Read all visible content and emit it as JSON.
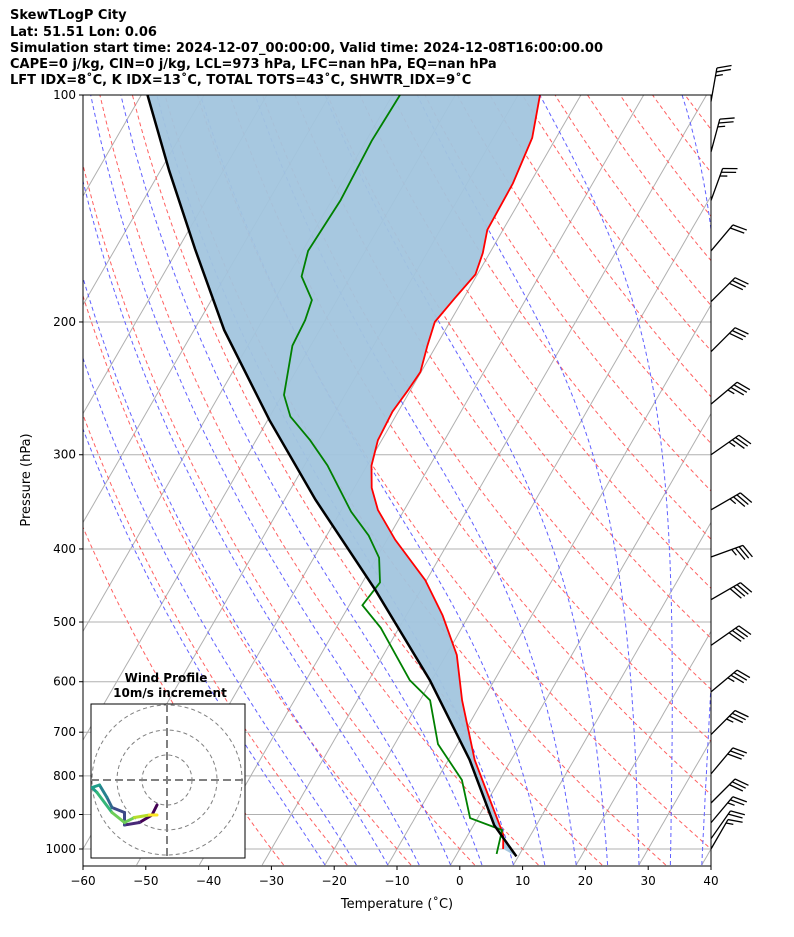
{
  "header": {
    "title": "SkewTLogP City",
    "location": "Lat: 51.51   Lon: 0.06",
    "times": "Simulation start time: 2024-12-07_00:00:00, Valid time: 2024-12-08T16:00:00.00",
    "indices1": "CAPE=0 j/kg, CIN=0 j/kg, LCL=973 hPa, LFC=nan hPa, EQ=nan hPa",
    "indices2": "LFT IDX=8˚C, K IDX=13˚C, TOTAL TOTS=43˚C, SHWTR_IDX=9˚C"
  },
  "chart_data": {
    "type": "line",
    "title": "SkewTLogP City",
    "xlabel": "Temperature (˚C)",
    "ylabel": "Pressure (hPa)",
    "xlim": [
      -60,
      40
    ],
    "ylim": [
      1050,
      100
    ],
    "xticks": [
      "−60",
      "−50",
      "−40",
      "−30",
      "−20",
      "−10",
      "0",
      "10",
      "20",
      "30",
      "40"
    ],
    "xtick_values": [
      -60,
      -50,
      -40,
      -30,
      -20,
      -10,
      0,
      10,
      20,
      30,
      40
    ],
    "yticks": [
      "100",
      "200",
      "300",
      "400",
      "500",
      "600",
      "700",
      "800",
      "900",
      "1000"
    ],
    "ytick_values": [
      100,
      200,
      300,
      400,
      500,
      600,
      700,
      800,
      900,
      1000
    ],
    "series": [
      {
        "name": "Temperature",
        "color": "#ff0000",
        "p": [
          1000,
          957,
          861,
          762,
          635,
          553,
          490,
          440,
          389,
          355,
          332,
          310,
          287,
          263,
          246,
          233,
          215,
          200,
          186,
          173,
          162,
          151,
          131,
          114,
          100
        ],
        "t": [
          6.9,
          5.6,
          0.3,
          -5.8,
          -13.3,
          -18.3,
          -24.2,
          -30.2,
          -38.7,
          -44.2,
          -47.2,
          -49.3,
          -50.6,
          -50.9,
          -50.4,
          -50.1,
          -51.4,
          -52.4,
          -51.4,
          -50.3,
          -51.1,
          -52.5,
          -52.7,
          -53.8,
          -56.5
        ]
      },
      {
        "name": "Dewpoint",
        "color": "#008000",
        "p": [
          1015,
          944,
          910,
          810,
          726,
          635,
          597,
          509,
          475,
          443,
          411,
          384,
          357,
          310,
          287,
          267,
          250,
          215,
          199,
          187,
          174,
          161,
          138,
          115,
          100
        ],
        "t": [
          6.3,
          5.0,
          -1.2,
          -6.0,
          -13.1,
          -18.4,
          -23.5,
          -32.9,
          -37.9,
          -37.2,
          -39.6,
          -43.3,
          -48.3,
          -56.3,
          -61.4,
          -66.7,
          -69.7,
          -72.9,
          -73.2,
          -74.0,
          -77.8,
          -79.1,
          -78.6,
          -79.1,
          -78.8
        ]
      },
      {
        "name": "Parcel profile",
        "color": "#000000",
        "p": [
          1023,
          930,
          762,
          597,
          453,
          344,
          270,
          205,
          160,
          126,
          100
        ],
        "t": [
          9.7,
          3.3,
          -6.6,
          -20.3,
          -37.3,
          -55.1,
          -69.7,
          -85.2,
          -97.3,
          -108.6,
          -119
        ]
      }
    ],
    "shading": {
      "between": [
        "Parcel profile",
        "Temperature"
      ],
      "color": "#a2c5de"
    },
    "wind_barbs": {
      "p": [
        102,
        119,
        138,
        161,
        188,
        219,
        257,
        300,
        355,
        410,
        467,
        537,
        619,
        705,
        795,
        869,
        923,
        969,
        1000
      ],
      "speed_kt": [
        25,
        25,
        25,
        20,
        30,
        30,
        35,
        35,
        35,
        35,
        40,
        40,
        35,
        35,
        30,
        30,
        25,
        20,
        15
      ],
      "dir_deg": [
        10,
        15,
        20,
        40,
        45,
        45,
        50,
        55,
        60,
        70,
        60,
        55,
        50,
        45,
        40,
        45,
        40,
        35,
        30
      ]
    },
    "hodograph": {
      "title": "Wind Profile",
      "subtitle": "10m/s increment",
      "rings_ms": [
        10,
        20,
        30
      ],
      "u": [
        -4,
        -6,
        -11,
        -17,
        -17,
        -22,
        -24,
        -27,
        -30,
        -28,
        -22,
        -17,
        -13,
        -7,
        -4
      ],
      "v": [
        -10,
        -14,
        -17,
        -18,
        -13,
        -11,
        -7,
        -2,
        -3,
        -5,
        -13,
        -17,
        -15,
        -14,
        -14
      ]
    }
  }
}
